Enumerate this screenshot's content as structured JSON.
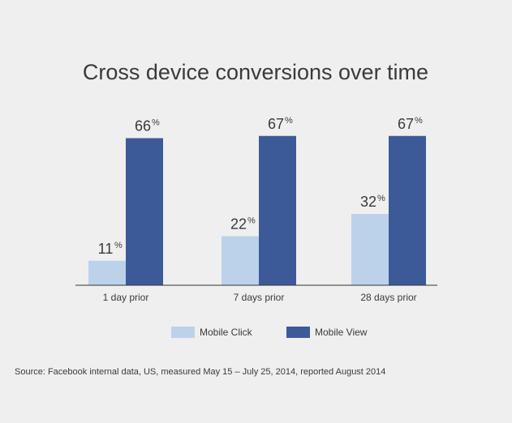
{
  "chart_data": {
    "type": "bar",
    "title": "Cross device conversions over time",
    "categories": [
      "1 day prior",
      "7 days prior",
      "28 days prior"
    ],
    "series": [
      {
        "name": "Mobile Click",
        "values": [
          11,
          22,
          32
        ],
        "color": "#bcd2ea"
      },
      {
        "name": "Mobile View",
        "values": [
          66,
          67,
          67
        ],
        "color": "#3d5a98"
      }
    ],
    "value_suffix": "%",
    "ylim": [
      0,
      80
    ],
    "grid": false,
    "legend": "bottom"
  },
  "source": "Source: Facebook internal data, US, measured May 15 – July 25, 2014, reported August 2014",
  "colors": {
    "background": "#efefef",
    "text": "#3a3a3a",
    "axis": "#333333"
  }
}
